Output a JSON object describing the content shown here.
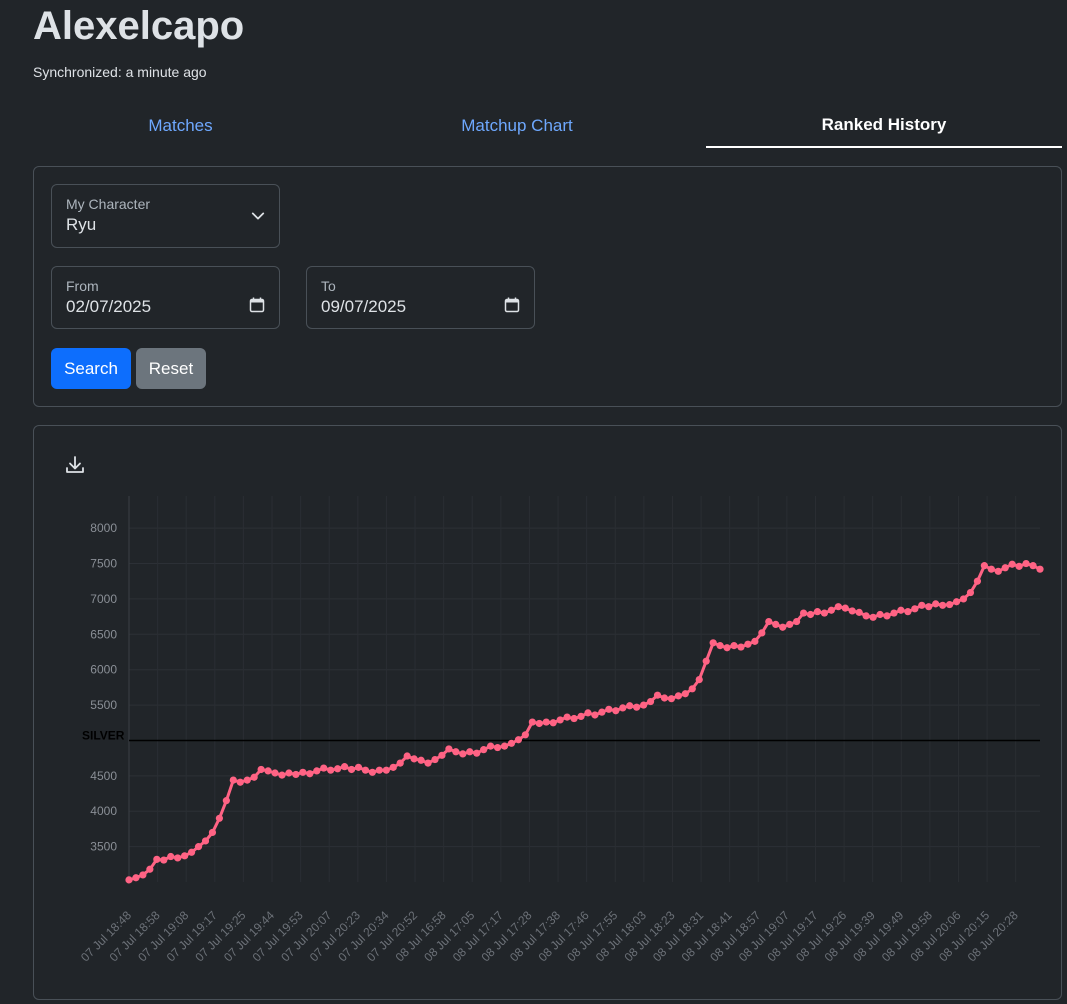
{
  "header": {
    "title": "Alexelcapo",
    "sync_text": "Synchronized: a minute ago"
  },
  "tabs": [
    {
      "label": "Matches",
      "active": false
    },
    {
      "label": "Matchup Chart",
      "active": false
    },
    {
      "label": "Ranked History",
      "active": true
    }
  ],
  "filters": {
    "character": {
      "label": "My Character",
      "value": "Ryu"
    },
    "from": {
      "label": "From",
      "value": "02/07/2025"
    },
    "to": {
      "label": "To",
      "value": "09/07/2025"
    },
    "search_label": "Search",
    "reset_label": "Reset"
  },
  "colors": {
    "accent": "#0d6efd",
    "tab_link": "#6ea8fe",
    "series": "#ff6384",
    "threshold": "#000000"
  },
  "chart_data": {
    "type": "line",
    "ylim": [
      3000,
      8200
    ],
    "yticks": [
      3500,
      4000,
      4500,
      5000,
      5500,
      6000,
      6500,
      7000,
      7500,
      8000
    ],
    "ytick_labels": [
      "3500",
      "4000",
      "4500",
      "",
      "5500",
      "6000",
      "6500",
      "7000",
      "7500",
      "8000"
    ],
    "x_labels": [
      "07 Jul 18:48",
      "07 Jul 18:58",
      "07 Jul 19:08",
      "07 Jul 19:17",
      "07 Jul 19:25",
      "07 Jul 19:44",
      "07 Jul 19:53",
      "07 Jul 20:07",
      "07 Jul 20:23",
      "07 Jul 20:34",
      "07 Jul 20:52",
      "08 Jul 16:58",
      "08 Jul 17:05",
      "08 Jul 17:17",
      "08 Jul 17:28",
      "08 Jul 17:38",
      "08 Jul 17:46",
      "08 Jul 17:55",
      "08 Jul 18:03",
      "08 Jul 18:23",
      "08 Jul 18:31",
      "08 Jul 18:41",
      "08 Jul 18:57",
      "08 Jul 19:07",
      "08 Jul 19:17",
      "08 Jul 19:26",
      "08 Jul 19:39",
      "08 Jul 19:49",
      "08 Jul 19:58",
      "08 Jul 20:06",
      "08 Jul 20:15",
      "08 Jul 20:28"
    ],
    "threshold": {
      "label": "SILVER",
      "value": 5000
    },
    "grid": true,
    "series": [
      {
        "values": [
          3030,
          3060,
          3100,
          3180,
          3320,
          3310,
          3360,
          3340,
          3370,
          3420,
          3500,
          3580,
          3700,
          3900,
          4150,
          4440,
          4410,
          4440,
          4480,
          4590,
          4570,
          4540,
          4510,
          4540,
          4520,
          4550,
          4530,
          4570,
          4610,
          4580,
          4600,
          4630,
          4590,
          4620,
          4580,
          4550,
          4580,
          4580,
          4620,
          4680,
          4780,
          4740,
          4720,
          4680,
          4730,
          4790,
          4880,
          4840,
          4810,
          4840,
          4820,
          4870,
          4920,
          4900,
          4920,
          4960,
          5010,
          5080,
          5260,
          5240,
          5260,
          5250,
          5290,
          5330,
          5310,
          5340,
          5390,
          5360,
          5400,
          5440,
          5420,
          5460,
          5490,
          5470,
          5500,
          5550,
          5640,
          5600,
          5590,
          5630,
          5660,
          5730,
          5860,
          6120,
          6380,
          6340,
          6310,
          6340,
          6320,
          6360,
          6400,
          6520,
          6680,
          6640,
          6600,
          6640,
          6680,
          6800,
          6780,
          6820,
          6800,
          6840,
          6890,
          6870,
          6830,
          6810,
          6760,
          6740,
          6780,
          6760,
          6800,
          6840,
          6820,
          6860,
          6910,
          6890,
          6930,
          6910,
          6920,
          6960,
          7000,
          7090,
          7250,
          7470,
          7420,
          7390,
          7440,
          7490,
          7460,
          7500,
          7470,
          7420
        ]
      }
    ]
  }
}
